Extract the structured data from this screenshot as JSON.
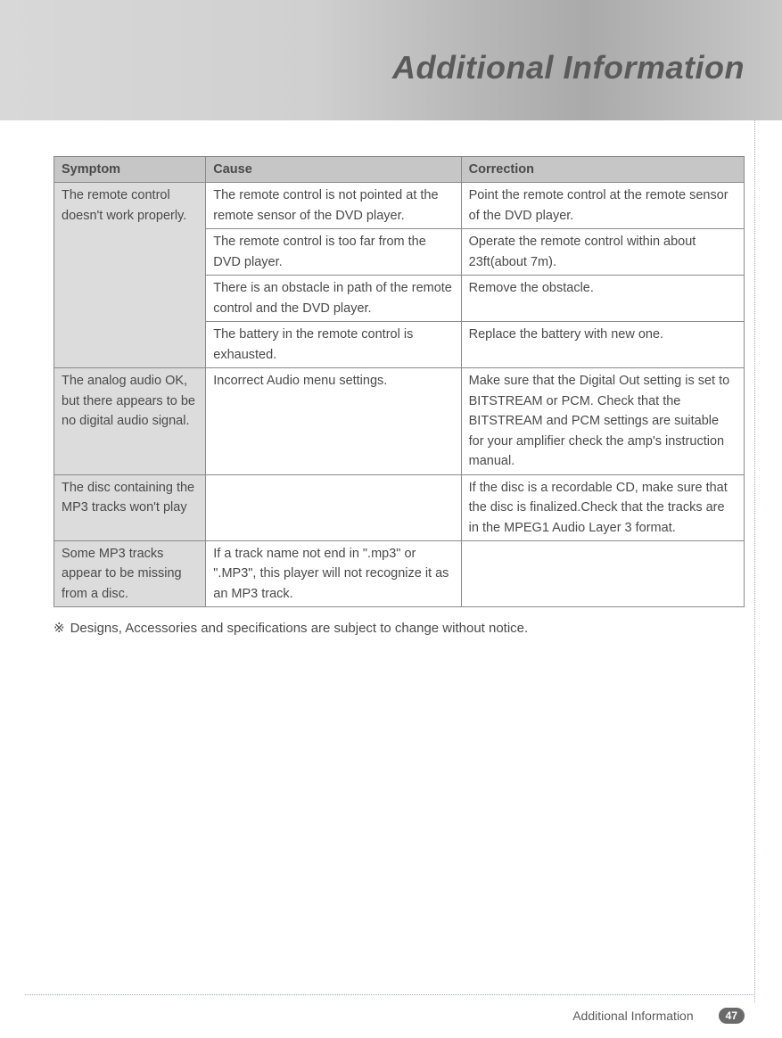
{
  "header": {
    "title": "Additional Information",
    "title_color": "#5a5a5a",
    "title_fontsize": 36,
    "band_gradient": [
      "#d8d8d8",
      "#d0d0d0",
      "#b8b8b8",
      "#aaaaaa",
      "#c8c8c8"
    ]
  },
  "table": {
    "border_color": "#8a8a8a",
    "header_bg": "#c6c6c6",
    "symptom_bg": "#dcdcdc",
    "text_color": "#4a4a4a",
    "fontsize": 14.5,
    "columns": [
      {
        "key": "symptom",
        "label": "Symptom",
        "width_pct": 22
      },
      {
        "key": "cause",
        "label": "Cause",
        "width_pct": 37
      },
      {
        "key": "correction",
        "label": "Correction",
        "width_pct": 41
      }
    ],
    "groups": [
      {
        "symptom": "The remote control doesn't work properly.",
        "rows": [
          {
            "cause": "The remote control is not pointed at the remote sensor of the DVD player.",
            "correction": "Point the remote control at the remote sensor of the DVD player."
          },
          {
            "cause": "The remote control is too far from the DVD player.",
            "correction": "Operate the remote control within about 23ft(about 7m)."
          },
          {
            "cause": "There is an obstacle in path of the remote control and the DVD player.",
            "correction": "Remove the obstacle."
          },
          {
            "cause": "The battery in the remote control is exhausted.",
            "correction": "Replace the battery with new one."
          }
        ]
      },
      {
        "symptom": "The analog audio OK, but there appears to be no digital audio signal.",
        "rows": [
          {
            "cause": "Incorrect Audio menu settings.",
            "correction": "Make sure that the Digital Out setting is set to BITSTREAM or PCM. Check that the BITSTREAM and PCM settings are suitable for your amplifier check the amp's instruction manual."
          }
        ]
      },
      {
        "symptom": "The disc containing the MP3 tracks won't play",
        "rows": [
          {
            "cause": "",
            "correction": "If the disc is a recordable CD, make sure that the disc is finalized.Check that the tracks are in the MPEG1 Audio Layer 3 format."
          }
        ]
      },
      {
        "symptom": "Some MP3 tracks appear to be missing from a disc.",
        "rows": [
          {
            "cause": "If a track name not end in \".mp3\" or \".MP3\", this player will not recognize it as an MP3 track.",
            "correction": ""
          }
        ]
      }
    ]
  },
  "footnote": {
    "mark": "※",
    "text": "Designs, Accessories and specifications are subject to change without notice."
  },
  "footer": {
    "section_label": "Additional Information",
    "page_number": "47",
    "badge_bg": "#6a6a6a",
    "badge_fg": "#ffffff"
  },
  "decoration": {
    "dotted_color": "#9aa6cc"
  }
}
